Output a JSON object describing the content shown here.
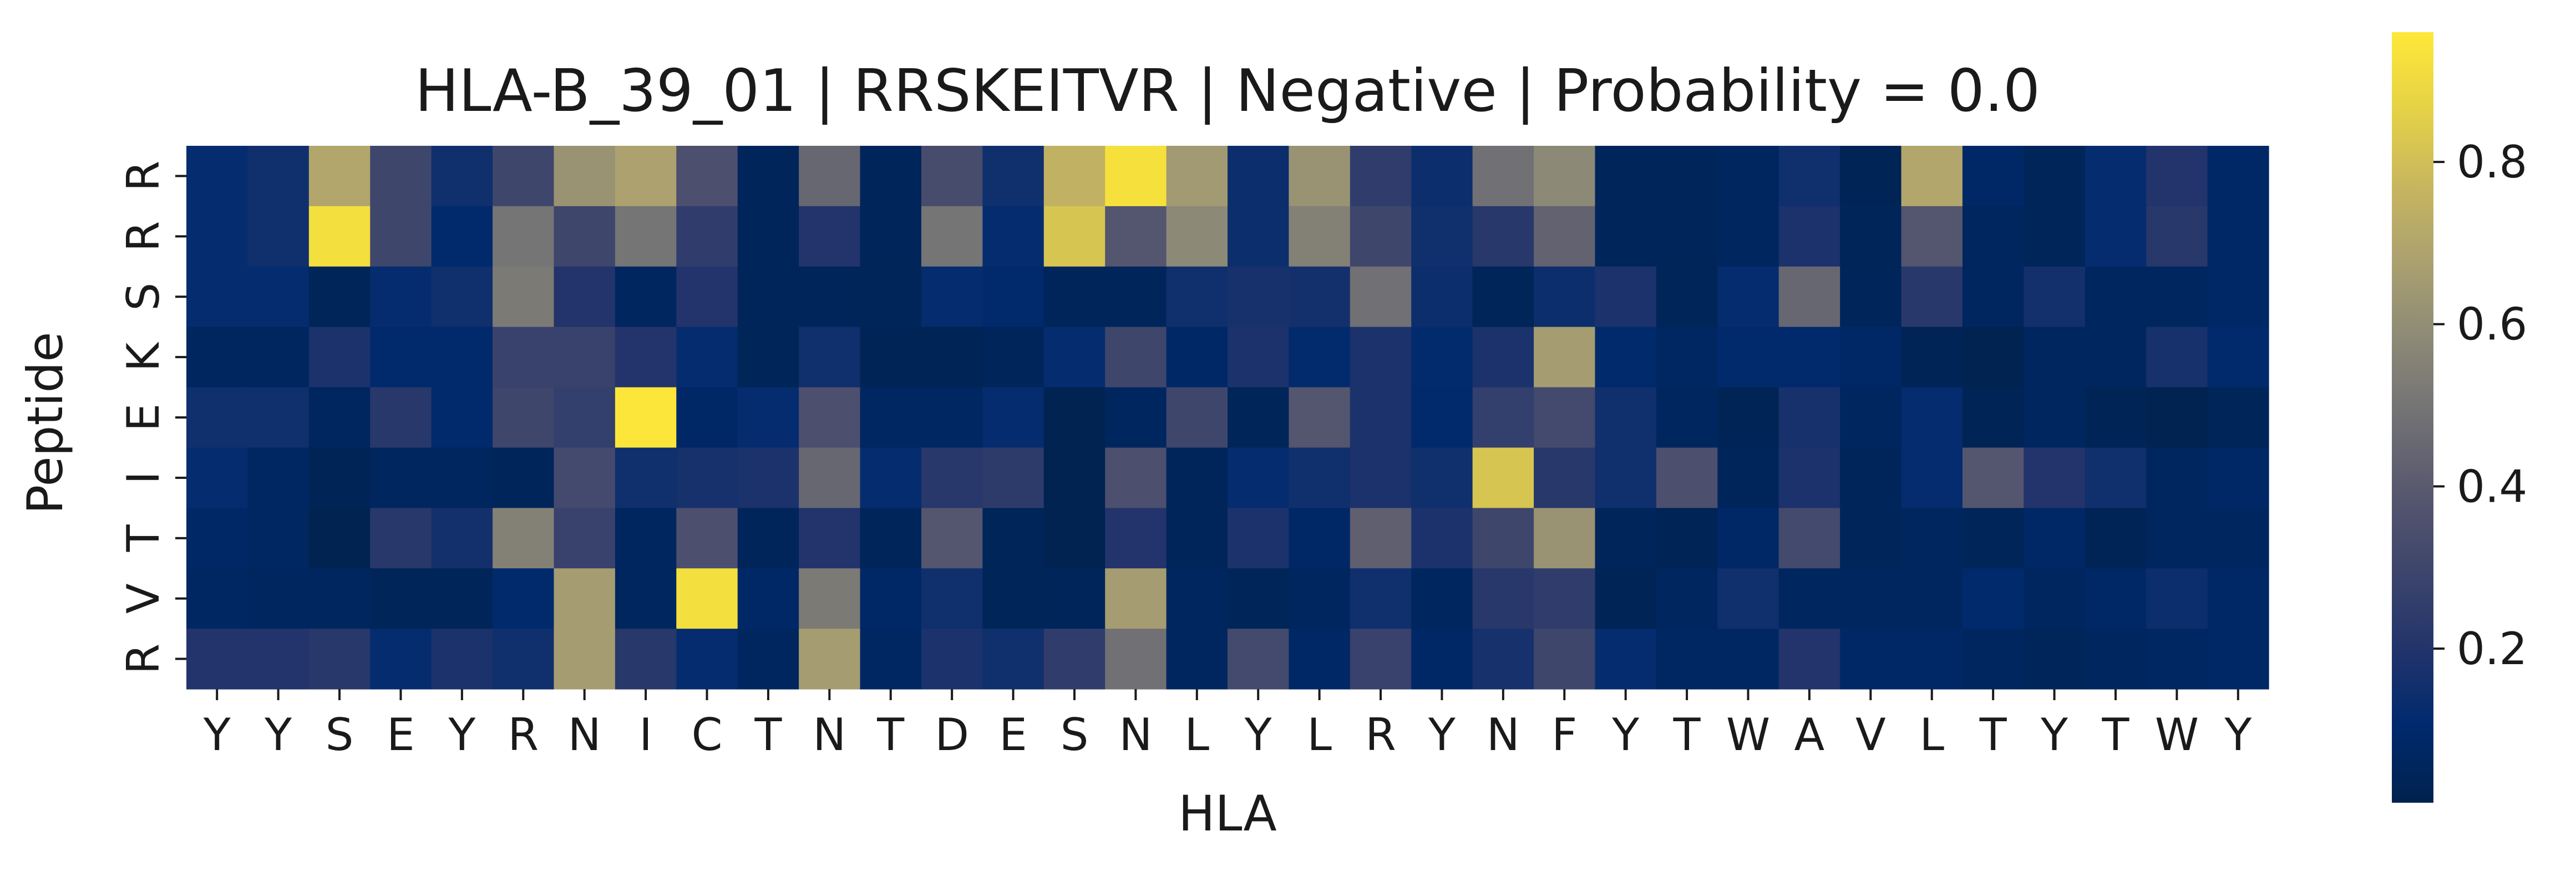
{
  "chart_data": {
    "type": "heatmap",
    "title": "HLA-B_39_01 | RRSKEITVR | Negative | Probability = 0.0",
    "xlabel": "HLA",
    "ylabel": "Peptide",
    "x_categories": [
      "Y",
      "Y",
      "S",
      "E",
      "Y",
      "R",
      "N",
      "I",
      "C",
      "T",
      "N",
      "T",
      "D",
      "E",
      "S",
      "N",
      "L",
      "Y",
      "L",
      "R",
      "Y",
      "N",
      "F",
      "Y",
      "T",
      "W",
      "A",
      "V",
      "L",
      "T",
      "Y",
      "T",
      "W",
      "Y"
    ],
    "y_categories": [
      "R",
      "R",
      "S",
      "K",
      "E",
      "I",
      "T",
      "V",
      "R"
    ],
    "values": [
      [
        0.12,
        0.15,
        0.7,
        0.3,
        0.15,
        0.3,
        0.62,
        0.68,
        0.35,
        0.05,
        0.45,
        0.05,
        0.33,
        0.15,
        0.75,
        0.93,
        0.65,
        0.14,
        0.62,
        0.25,
        0.14,
        0.48,
        0.58,
        0.05,
        0.05,
        0.06,
        0.15,
        0.03,
        0.7,
        0.08,
        0.04,
        0.12,
        0.2,
        0.08
      ],
      [
        0.12,
        0.15,
        0.92,
        0.3,
        0.1,
        0.5,
        0.3,
        0.5,
        0.25,
        0.05,
        0.2,
        0.05,
        0.5,
        0.12,
        0.82,
        0.38,
        0.58,
        0.14,
        0.55,
        0.3,
        0.15,
        0.22,
        0.43,
        0.05,
        0.05,
        0.06,
        0.18,
        0.04,
        0.38,
        0.06,
        0.04,
        0.12,
        0.22,
        0.08
      ],
      [
        0.12,
        0.12,
        0.04,
        0.12,
        0.15,
        0.52,
        0.2,
        0.06,
        0.2,
        0.05,
        0.05,
        0.04,
        0.12,
        0.1,
        0.05,
        0.05,
        0.15,
        0.17,
        0.16,
        0.48,
        0.14,
        0.04,
        0.14,
        0.18,
        0.04,
        0.12,
        0.45,
        0.05,
        0.22,
        0.06,
        0.16,
        0.06,
        0.06,
        0.08
      ],
      [
        0.06,
        0.06,
        0.18,
        0.1,
        0.1,
        0.28,
        0.28,
        0.2,
        0.12,
        0.04,
        0.15,
        0.03,
        0.03,
        0.05,
        0.12,
        0.3,
        0.08,
        0.18,
        0.11,
        0.18,
        0.11,
        0.18,
        0.66,
        0.1,
        0.07,
        0.1,
        0.1,
        0.08,
        0.03,
        0.02,
        0.06,
        0.06,
        0.17,
        0.1
      ],
      [
        0.15,
        0.15,
        0.06,
        0.22,
        0.1,
        0.3,
        0.26,
        0.95,
        0.08,
        0.12,
        0.35,
        0.07,
        0.07,
        0.12,
        0.02,
        0.06,
        0.3,
        0.04,
        0.38,
        0.18,
        0.1,
        0.26,
        0.32,
        0.15,
        0.06,
        0.03,
        0.17,
        0.06,
        0.12,
        0.03,
        0.06,
        0.03,
        0.02,
        0.04
      ],
      [
        0.12,
        0.07,
        0.03,
        0.06,
        0.06,
        0.05,
        0.32,
        0.15,
        0.17,
        0.18,
        0.45,
        0.12,
        0.22,
        0.24,
        0.02,
        0.35,
        0.05,
        0.12,
        0.15,
        0.18,
        0.15,
        0.82,
        0.22,
        0.15,
        0.35,
        0.05,
        0.18,
        0.05,
        0.12,
        0.38,
        0.2,
        0.15,
        0.06,
        0.08
      ],
      [
        0.08,
        0.07,
        0.02,
        0.22,
        0.16,
        0.55,
        0.28,
        0.06,
        0.35,
        0.05,
        0.2,
        0.05,
        0.38,
        0.04,
        0.02,
        0.2,
        0.05,
        0.18,
        0.08,
        0.42,
        0.18,
        0.3,
        0.62,
        0.05,
        0.03,
        0.08,
        0.32,
        0.05,
        0.06,
        0.04,
        0.08,
        0.03,
        0.06,
        0.06
      ],
      [
        0.07,
        0.06,
        0.06,
        0.04,
        0.04,
        0.1,
        0.66,
        0.06,
        0.92,
        0.08,
        0.52,
        0.08,
        0.15,
        0.04,
        0.05,
        0.66,
        0.06,
        0.04,
        0.06,
        0.15,
        0.06,
        0.22,
        0.25,
        0.03,
        0.06,
        0.15,
        0.06,
        0.06,
        0.06,
        0.1,
        0.06,
        0.08,
        0.14,
        0.08
      ],
      [
        0.2,
        0.2,
        0.22,
        0.12,
        0.18,
        0.15,
        0.66,
        0.22,
        0.12,
        0.06,
        0.66,
        0.07,
        0.18,
        0.15,
        0.25,
        0.48,
        0.06,
        0.32,
        0.08,
        0.28,
        0.08,
        0.17,
        0.3,
        0.12,
        0.07,
        0.07,
        0.2,
        0.08,
        0.08,
        0.06,
        0.05,
        0.06,
        0.07,
        0.08
      ]
    ],
    "colormap": "cividis",
    "vmin": 0.01,
    "vmax": 0.96,
    "colorbar_ticks": [
      0.2,
      0.4,
      0.6,
      0.8
    ],
    "colorbar_tick_labels": [
      "0.2",
      "0.4",
      "0.6",
      "0.8"
    ],
    "grid": false,
    "legend": "colorbar-right"
  }
}
